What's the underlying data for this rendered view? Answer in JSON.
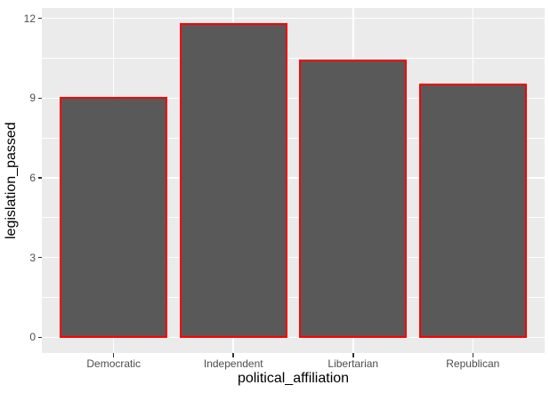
{
  "chart_data": {
    "type": "bar",
    "title": "",
    "xlabel": "political_affiliation",
    "ylabel": "legislation_passed",
    "categories": [
      "Democratic",
      "Independent",
      "Libertarian",
      "Republican"
    ],
    "values": [
      9.0,
      11.8,
      10.4,
      9.5
    ],
    "ylim": [
      -0.59,
      12.39
    ],
    "yticks_major": [
      0,
      3,
      6,
      9,
      12
    ],
    "yticks_minor": [
      1.5,
      4.5,
      7.5,
      10.5
    ],
    "bar_width_fraction": 0.9,
    "legend_position": "none",
    "grid": "horizontal major+minor, vertical major at category centers",
    "style": {
      "panel_background": "#EBEBEB",
      "gridline_color": "#FFFFFF",
      "bar_fill": "#595959",
      "bar_stroke": "#FF0000",
      "tick_label_color": "#4D4D4D",
      "axis_title_color": "#000000",
      "tick_mark_color": "#333333"
    }
  }
}
